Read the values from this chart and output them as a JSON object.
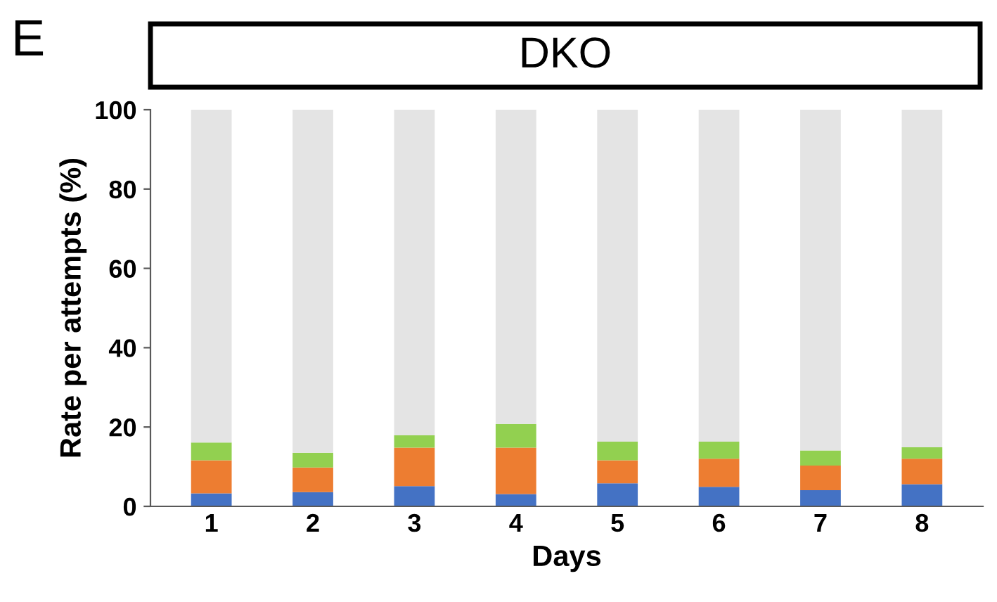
{
  "chart_data": {
    "type": "bar",
    "stacked": true,
    "title": "DKO",
    "annotations": [
      "E"
    ],
    "xlabel": "Days",
    "ylabel": "Rate per attempts (%)",
    "categories": [
      "1",
      "2",
      "3",
      "4",
      "5",
      "6",
      "7",
      "8"
    ],
    "series": [
      {
        "color": "#4472c4",
        "values": [
          3.3,
          3.6,
          5.1,
          3.1,
          5.8,
          4.9,
          4.1,
          5.6
        ]
      },
      {
        "color": "#ed7d31",
        "values": [
          8.3,
          6.2,
          9.7,
          11.7,
          5.8,
          7.1,
          6.2,
          6.4
        ]
      },
      {
        "color": "#92d050",
        "values": [
          4.5,
          3.7,
          3.1,
          6.0,
          4.7,
          4.3,
          3.8,
          2.9
        ]
      },
      {
        "color": "#e4e4e4",
        "values": [
          83.9,
          86.5,
          82.1,
          79.2,
          83.7,
          83.7,
          85.9,
          85.1
        ]
      }
    ],
    "ylim": [
      0,
      100
    ],
    "yticks": [
      0,
      20,
      40,
      60,
      80,
      100
    ],
    "grid": false,
    "legend": false
  }
}
